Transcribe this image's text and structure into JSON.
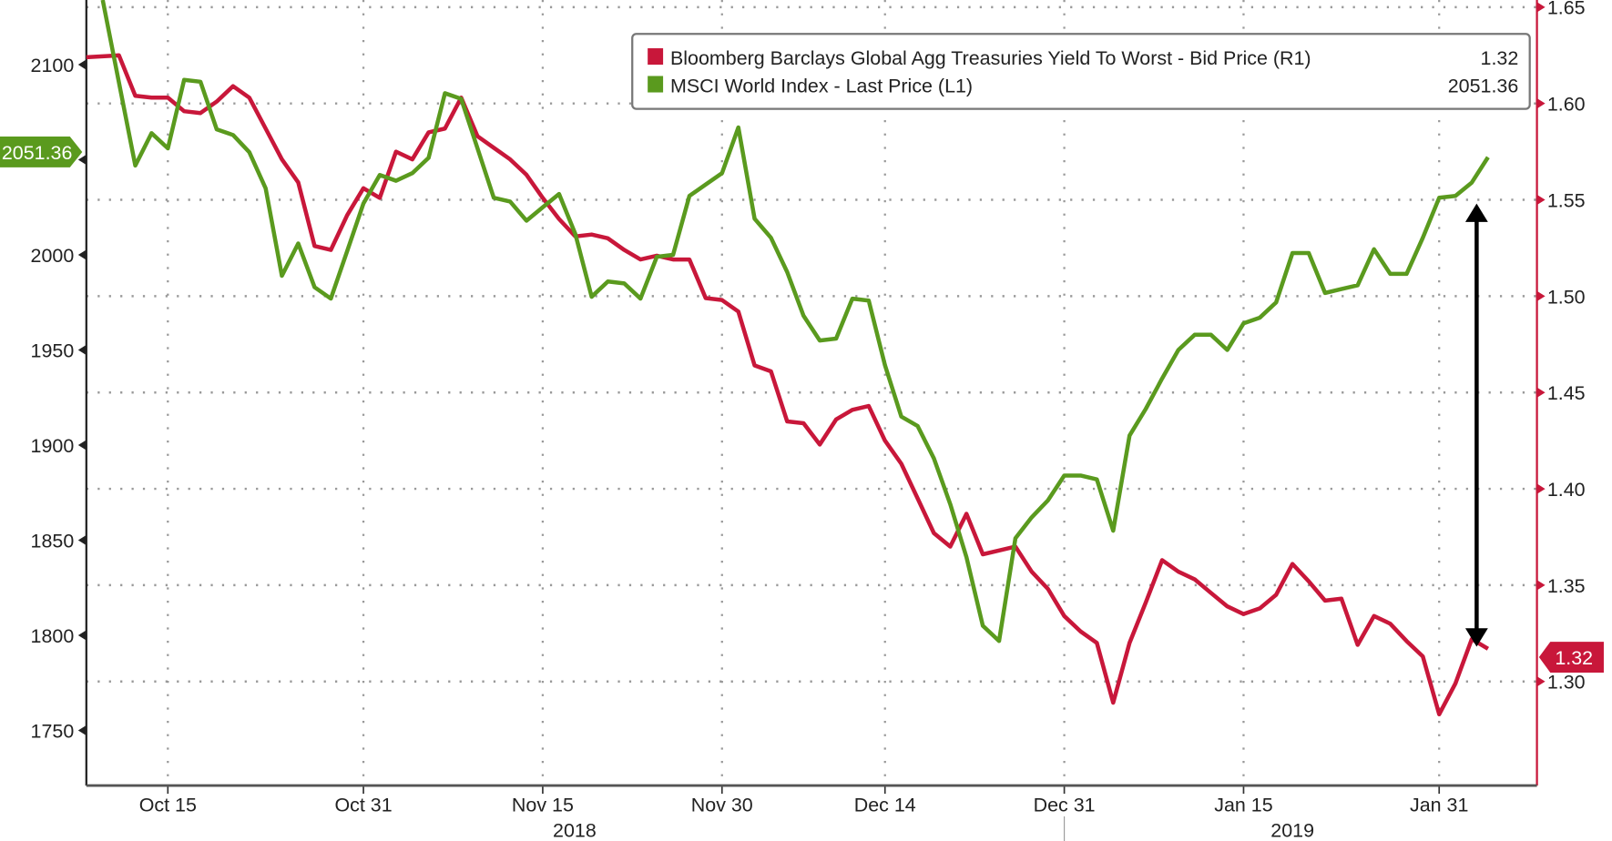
{
  "chart_data": {
    "type": "line",
    "title": "",
    "x_unit": "trading days from Oct 15 2018",
    "x_ticks": [
      {
        "i": 0,
        "label": "Oct 15"
      },
      {
        "i": 12,
        "label": "Oct 31"
      },
      {
        "i": 23,
        "label": "Nov 15"
      },
      {
        "i": 34,
        "label": "Nov 30"
      },
      {
        "i": 44,
        "label": "Dec 14"
      },
      {
        "i": 55,
        "label": "Dec 31"
      },
      {
        "i": 66,
        "label": "Jan 15"
      },
      {
        "i": 78,
        "label": "Jan 31"
      }
    ],
    "year_labels": [
      {
        "i": 23,
        "label": "2018"
      },
      {
        "i": 69,
        "label": "2019"
      }
    ],
    "xlim": [
      -5,
      84
    ],
    "left_axis": {
      "ticks": [
        2100,
        2050,
        2000,
        1950,
        1900,
        1850,
        1800,
        1750
      ],
      "tick_labels": [
        "2100",
        "",
        "2000",
        "1950",
        "1900",
        "1850",
        "1800",
        "1750"
      ],
      "ylim": [
        1721,
        2134
      ]
    },
    "right_axis": {
      "ticks": [
        1.65,
        1.6,
        1.55,
        1.5,
        1.45,
        1.4,
        1.35,
        1.3
      ],
      "tick_labels": [
        "1.65",
        "1.60",
        "1.55",
        "1.50",
        "1.45",
        "1.40",
        "1.35",
        "1.30"
      ],
      "ylim": [
        1.246,
        1.6537
      ]
    },
    "grid": true,
    "legend_position": "top-right",
    "series": [
      {
        "name": "Bloomberg Barclays Global Agg Treasuries Yield To Worst - Bid Price (R1)",
        "last": "1.32",
        "axis": "right",
        "color": "#c8173a",
        "x": [
          -5,
          -3,
          -2,
          -1,
          0,
          1,
          2,
          3,
          4,
          5,
          6,
          7,
          8,
          9,
          10,
          11,
          12,
          13,
          14,
          15,
          16,
          17,
          18,
          19,
          20,
          21,
          22,
          23,
          24,
          25,
          26,
          27,
          28,
          29,
          30,
          31,
          32,
          33,
          34,
          35,
          36,
          37,
          38,
          39,
          40,
          41,
          42,
          43,
          44,
          45,
          46,
          47,
          48,
          49,
          50,
          51,
          52,
          53,
          54,
          55,
          56,
          57,
          58,
          59,
          60,
          61,
          62,
          63,
          64,
          65,
          66,
          67,
          68,
          69,
          70,
          71,
          72,
          73,
          74,
          75,
          76,
          77,
          78,
          79,
          80,
          81
        ],
        "values": [
          1.624,
          1.625,
          1.604,
          1.603,
          1.603,
          1.596,
          1.595,
          1.601,
          1.609,
          1.603,
          1.587,
          1.571,
          1.559,
          1.526,
          1.524,
          1.542,
          1.556,
          1.551,
          1.575,
          1.571,
          1.585,
          1.587,
          1.603,
          1.583,
          1.577,
          1.571,
          1.563,
          1.551,
          1.54,
          1.531,
          1.532,
          1.53,
          1.524,
          1.519,
          1.521,
          1.519,
          1.519,
          1.499,
          1.498,
          1.492,
          1.464,
          1.461,
          1.435,
          1.434,
          1.423,
          1.436,
          1.441,
          1.443,
          1.425,
          1.413,
          1.395,
          1.377,
          1.37,
          1.387,
          1.366,
          1.368,
          1.37,
          1.357,
          1.348,
          1.334,
          1.326,
          1.32,
          1.289,
          1.32,
          1.341,
          1.363,
          1.357,
          1.353,
          1.346,
          1.339,
          1.335,
          1.338,
          1.345,
          1.361,
          1.352,
          1.342,
          1.343,
          1.319,
          1.334,
          1.33,
          1.321,
          1.313,
          1.283,
          1.299,
          1.322,
          1.317
        ]
      },
      {
        "name": "MSCI World Index - Last Price (L1)",
        "last": "2051.36",
        "axis": "left",
        "color": "#5a9a1e",
        "x": [
          -4,
          -2,
          -1,
          0,
          1,
          2,
          3,
          4,
          5,
          6,
          7,
          8,
          9,
          10,
          11,
          12,
          13,
          14,
          15,
          16,
          17,
          18,
          19,
          20,
          21,
          22,
          23,
          24,
          25,
          26,
          27,
          28,
          29,
          30,
          31,
          32,
          33,
          34,
          35,
          36,
          37,
          38,
          39,
          40,
          41,
          42,
          43,
          44,
          45,
          46,
          47,
          48,
          49,
          50,
          51,
          52,
          53,
          54,
          55,
          56,
          57,
          58,
          59,
          60,
          61,
          62,
          63,
          64,
          65,
          66,
          67,
          68,
          69,
          70,
          71,
          72,
          73,
          74,
          75,
          76,
          77,
          78,
          79,
          80,
          81
        ],
        "values": [
          2134,
          2047,
          2064,
          2056,
          2092,
          2091,
          2066,
          2063,
          2054,
          2035,
          1989,
          2006,
          1983,
          1977,
          2002,
          2027,
          2042,
          2039,
          2043,
          2051,
          2085,
          2082,
          2056,
          2030,
          2028,
          2018,
          2025,
          2032,
          2011,
          1978,
          1986,
          1985,
          1977,
          1999,
          2000,
          2031,
          2037,
          2043,
          2067,
          2019,
          2009,
          1991,
          1968,
          1955,
          1956,
          1977,
          1976,
          1942,
          1915,
          1910,
          1893,
          1869,
          1841,
          1805,
          1797,
          1851,
          1862,
          1871,
          1884,
          1884,
          1882,
          1855,
          1905,
          1919,
          1935,
          1950,
          1958,
          1958,
          1950,
          1964,
          1967,
          1975,
          2001,
          2001,
          1980,
          1982,
          1984,
          2003,
          1990,
          1990,
          2009,
          2030,
          2031,
          2038,
          2051.36
        ]
      }
    ],
    "annotations": [
      {
        "type": "double-arrow",
        "at_i": 80.3,
        "from_value_left": 2027,
        "to_value_left": 1794
      }
    ]
  },
  "badges": {
    "left_value": "2051.36",
    "right_value": "1.32"
  }
}
